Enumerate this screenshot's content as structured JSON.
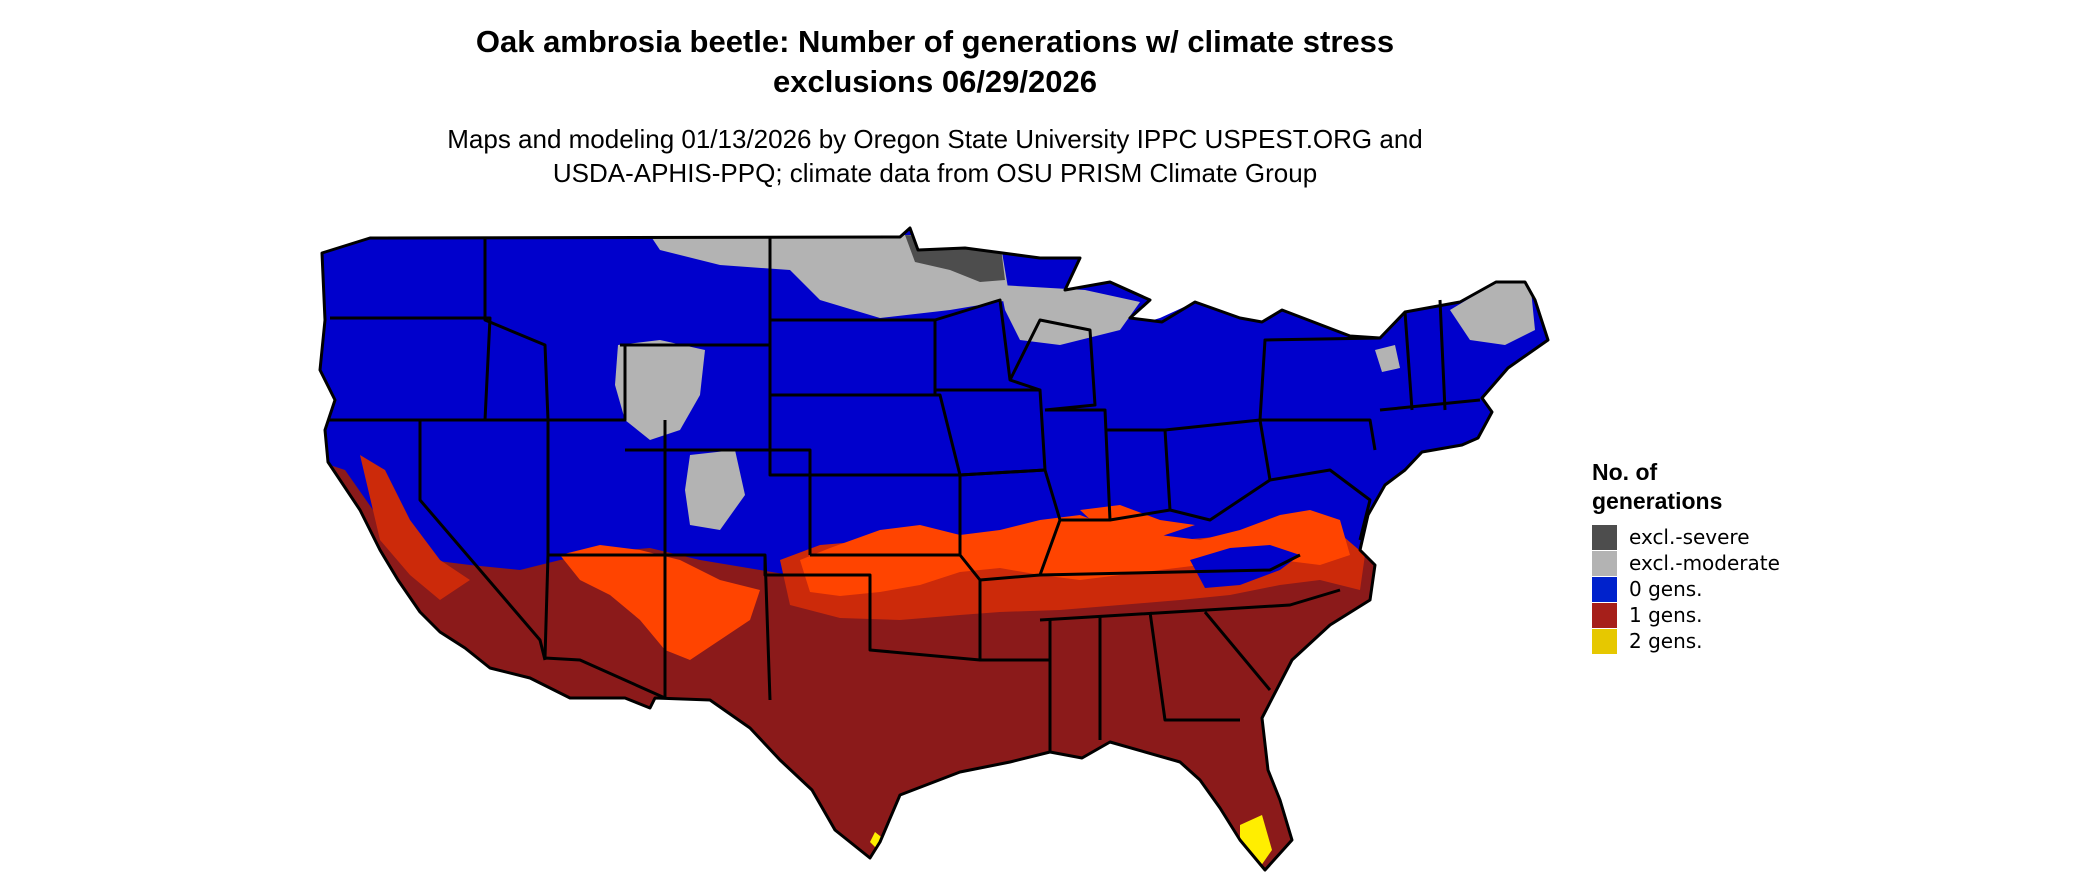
{
  "title_line1": "Oak ambrosia beetle: Number of generations w/ climate stress",
  "title_line2": "exclusions 06/29/2026",
  "subtitle_line1": "Maps and modeling 01/13/2026 by Oregon State University IPPC USPEST.ORG and",
  "subtitle_line2": "USDA-APHIS-PPQ; climate data from OSU PRISM Climate Group",
  "legend": {
    "title_line1": "No. of",
    "title_line2": "generations",
    "items": [
      {
        "label": "excl.-severe",
        "color": "#4d4d4d"
      },
      {
        "label": "excl.-moderate",
        "color": "#b3b3b3"
      },
      {
        "label": "0 gens.",
        "color": "#0022cc"
      },
      {
        "label": "1 gens.",
        "color": "#a61f1a"
      },
      {
        "label": "2 gens.",
        "color": "#e6c800"
      }
    ]
  },
  "colors": {
    "zero_gens_map": "#0000cc",
    "one_gens_map": "#8b1a1a",
    "transition_orange": "#ff4400",
    "transition_red": "#cc2a0a",
    "excl_moderate": "#b3b3b3",
    "excl_severe": "#4d4d4d",
    "two_gens": "#ffee00",
    "border": "#000000"
  }
}
